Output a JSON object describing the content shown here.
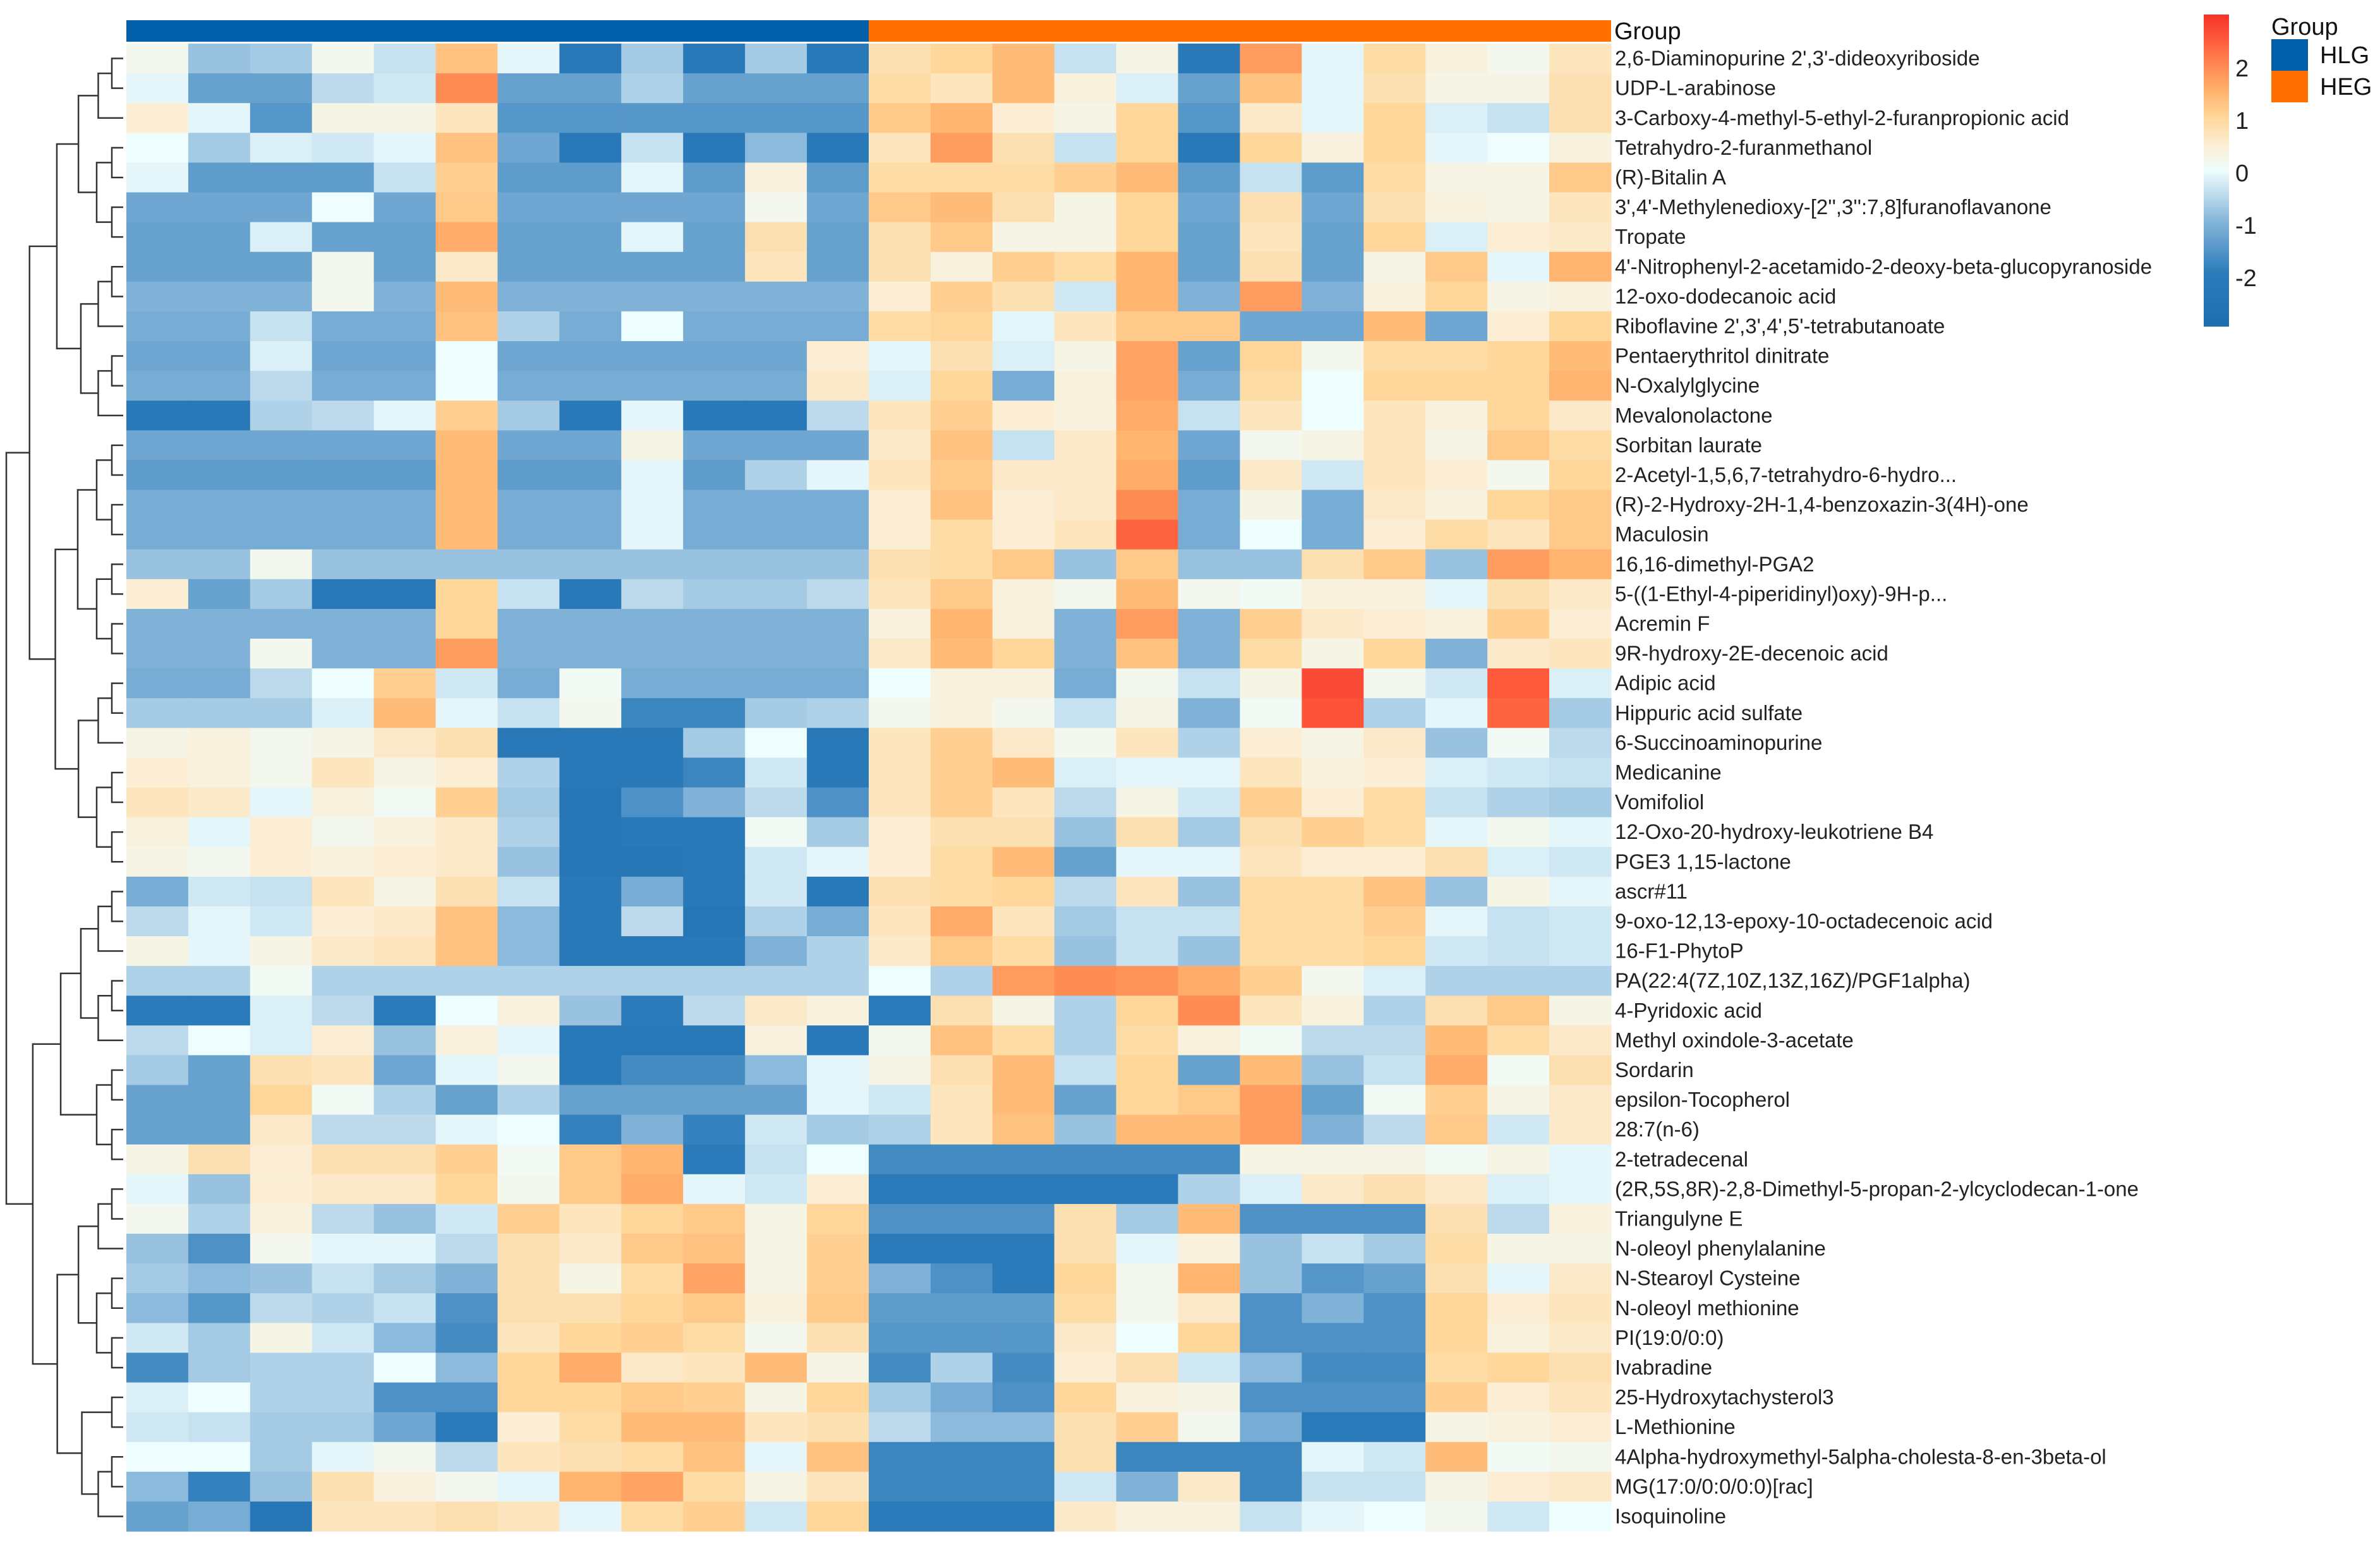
{
  "chart_data": {
    "type": "heatmap",
    "title": "",
    "group_annotation": {
      "title": "Group",
      "groups": [
        {
          "name": "HLG",
          "color": "#005fa8",
          "n_columns": 12
        },
        {
          "name": "HEG",
          "color": "#ff7000",
          "n_columns": 12
        }
      ]
    },
    "color_scale": {
      "range": [
        -3,
        3
      ],
      "ticks": [
        "2",
        "1",
        "0",
        "-1",
        "-2"
      ],
      "tick_values": [
        2,
        1,
        0,
        -1,
        -2
      ],
      "low_color": "#1f6fb0",
      "mid_color": "#eefdfd",
      "high_color": "#f4322a",
      "legend_position": "top-right"
    },
    "row_dendrogram": "left",
    "rows": [
      "2,6-Diaminopurine 2',3'-dideoxyriboside",
      "UDP-L-arabinose",
      "3-Carboxy-4-methyl-5-ethyl-2-furanpropionic acid",
      "Tetrahydro-2-furanmethanol",
      "(R)-Bitalin A",
      "3',4'-Methylenedioxy-[2'',3'':7,8]furanoflavanone",
      "Tropate",
      "4'-Nitrophenyl-2-acetamido-2-deoxy-beta-glucopyranoside",
      "12-oxo-dodecanoic acid",
      "Riboflavine 2',3',4',5'-tetrabutanoate",
      "Pentaerythritol dinitrate",
      "N-Oxalylglycine",
      "Mevalonolactone",
      "Sorbitan laurate",
      "2-Acetyl-1,5,6,7-tetrahydro-6-hydro...",
      "(R)-2-Hydroxy-2H-1,4-benzoxazin-3(4H)-one",
      "Maculosin",
      "16,16-dimethyl-PGA2",
      "5-((1-Ethyl-4-piperidinyl)oxy)-9H-p...",
      "Acremin F",
      "9R-hydroxy-2E-decenoic acid",
      "Adipic acid",
      "Hippuric acid sulfate",
      "6-Succinoaminopurine",
      "Medicanine",
      "Vomifoliol",
      "12-Oxo-20-hydroxy-leukotriene B4",
      "PGE3 1,15-lactone",
      "ascr#11",
      "9-oxo-12,13-epoxy-10-octadecenoic acid",
      "16-F1-PhytoP",
      "PA(22:4(7Z,10Z,13Z,16Z)/PGF1alpha)",
      "4-Pyridoxic acid",
      "Methyl oxindole-3-acetate",
      "Sordarin",
      "epsilon-Tocopherol",
      "28:7(n-6)",
      "2-tetradecenal",
      "(2R,5S,8R)-2,8-Dimethyl-5-propan-2-ylcyclodecan-1-one",
      "Triangulyne E",
      "N-oleoyl phenylalanine",
      "N-Stearoyl Cysteine",
      "N-oleoyl methionine",
      "PI(19:0/0:0)",
      "Ivabradine",
      "25-Hydroxytachysterol3",
      "L-Methionine",
      "4Alpha-hydroxymethyl-5alpha-cholesta-8-en-3beta-ol",
      "MG(17:0/0:0/0:0)[rac]",
      "Isoquinoline"
    ],
    "values": [
      [
        0.2,
        -0.8,
        -0.7,
        0.2,
        -0.4,
        1.3,
        -0.1,
        -2.2,
        -0.7,
        -2.2,
        -0.7,
        -2.2,
        0.8,
        1.0,
        1.4,
        -0.4,
        0.3,
        -2.2,
        1.8,
        -0.1,
        0.9,
        0.4,
        0.2,
        0.7
      ],
      [
        -0.1,
        -1.3,
        -1.3,
        -0.5,
        -0.3,
        2.0,
        -1.3,
        -1.3,
        -0.6,
        -1.3,
        -1.3,
        -1.3,
        0.9,
        0.7,
        1.4,
        0.4,
        -0.2,
        -1.3,
        1.3,
        -0.1,
        0.8,
        0.3,
        0.3,
        0.8
      ],
      [
        0.5,
        -0.1,
        -1.5,
        0.3,
        0.3,
        0.7,
        -1.5,
        -1.5,
        -1.5,
        -1.5,
        -1.5,
        -1.5,
        1.2,
        1.5,
        0.5,
        0.3,
        1.0,
        -1.5,
        0.6,
        -0.1,
        1.0,
        -0.2,
        -0.4,
        0.8
      ],
      [
        0.0,
        -0.7,
        -0.2,
        -0.3,
        -0.1,
        1.3,
        -1.2,
        -2.2,
        -0.4,
        -2.2,
        -0.9,
        -2.2,
        0.7,
        1.8,
        0.8,
        -0.4,
        1.0,
        -2.2,
        1.0,
        0.4,
        1.0,
        -0.1,
        0.0,
        0.4
      ],
      [
        -0.1,
        -1.4,
        -1.4,
        -1.4,
        -0.4,
        1.1,
        -1.4,
        -1.4,
        -0.1,
        -1.4,
        0.4,
        -1.4,
        0.9,
        0.9,
        0.9,
        1.1,
        1.4,
        -1.4,
        -0.4,
        -1.4,
        0.9,
        0.3,
        0.3,
        1.2
      ],
      [
        -1.2,
        -1.2,
        -1.2,
        0.0,
        -1.2,
        1.2,
        -1.2,
        -1.2,
        -1.2,
        -1.2,
        0.2,
        -1.2,
        1.2,
        1.4,
        0.8,
        0.3,
        1.0,
        -1.2,
        0.8,
        -1.2,
        0.8,
        0.4,
        0.3,
        0.7
      ],
      [
        -1.3,
        -1.3,
        -0.2,
        -1.3,
        -1.3,
        1.6,
        -1.3,
        -1.3,
        -0.1,
        -1.3,
        0.8,
        -1.3,
        0.8,
        1.2,
        0.3,
        0.3,
        1.0,
        -1.3,
        0.7,
        -1.3,
        1.0,
        -0.2,
        0.5,
        0.6
      ],
      [
        -1.3,
        -1.3,
        -1.3,
        0.2,
        -1.3,
        0.6,
        -1.3,
        -1.3,
        -1.3,
        -1.3,
        0.7,
        -1.3,
        0.8,
        0.4,
        1.1,
        0.9,
        1.5,
        -1.3,
        0.8,
        -1.3,
        0.3,
        1.2,
        -0.1,
        1.5
      ],
      [
        -1.0,
        -1.0,
        -1.0,
        0.2,
        -1.0,
        1.4,
        -1.0,
        -1.0,
        -1.0,
        -1.0,
        -1.0,
        -1.0,
        0.5,
        1.1,
        0.8,
        -0.3,
        1.5,
        -1.0,
        1.8,
        -1.0,
        0.4,
        1.0,
        0.3,
        0.4
      ],
      [
        -1.1,
        -1.1,
        -0.4,
        -1.1,
        -1.1,
        1.3,
        -0.6,
        -1.1,
        0.0,
        -1.1,
        -1.1,
        -1.1,
        0.9,
        1.0,
        -0.1,
        0.7,
        1.2,
        1.2,
        -1.2,
        -1.2,
        1.4,
        -1.2,
        0.5,
        1.0
      ],
      [
        -1.2,
        -1.2,
        -0.2,
        -1.2,
        -1.2,
        0.0,
        -1.2,
        -1.2,
        -1.2,
        -1.2,
        -1.2,
        0.5,
        -0.1,
        0.8,
        -0.2,
        0.3,
        1.7,
        -1.3,
        1.0,
        0.2,
        0.9,
        0.9,
        1.0,
        1.4
      ],
      [
        -1.1,
        -1.1,
        -0.5,
        -1.1,
        -1.1,
        0.0,
        -1.1,
        -1.1,
        -1.1,
        -1.1,
        -1.1,
        0.6,
        -0.2,
        1.0,
        -1.1,
        0.4,
        1.7,
        -1.1,
        0.9,
        0.0,
        1.0,
        1.0,
        1.0,
        1.5
      ],
      [
        -2.2,
        -2.2,
        -0.6,
        -0.5,
        -0.1,
        1.1,
        -0.7,
        -2.2,
        -0.1,
        -2.2,
        -2.2,
        -0.5,
        0.7,
        1.1,
        0.5,
        0.4,
        1.6,
        -0.4,
        0.7,
        0.0,
        0.7,
        0.4,
        1.0,
        0.6
      ],
      [
        -1.2,
        -1.2,
        -1.2,
        -1.2,
        -1.2,
        1.4,
        -1.2,
        -1.2,
        0.3,
        -1.2,
        -1.2,
        -1.2,
        0.6,
        1.3,
        -0.4,
        0.6,
        1.5,
        -1.2,
        0.2,
        0.3,
        0.7,
        0.3,
        1.2,
        0.9
      ],
      [
        -1.4,
        -1.4,
        -1.4,
        -1.4,
        -1.4,
        1.4,
        -1.4,
        -1.4,
        -0.1,
        -1.4,
        -0.6,
        -0.1,
        0.7,
        1.2,
        0.6,
        0.6,
        1.6,
        -1.4,
        0.6,
        -0.3,
        0.7,
        0.5,
        0.2,
        1.0
      ],
      [
        -1.1,
        -1.1,
        -1.1,
        -1.1,
        -1.1,
        1.4,
        -1.1,
        -1.1,
        -0.1,
        -1.1,
        -1.1,
        -1.1,
        0.5,
        1.3,
        0.5,
        0.6,
        2.0,
        -1.1,
        0.3,
        -1.1,
        0.6,
        0.4,
        1.0,
        1.2
      ],
      [
        -1.1,
        -1.1,
        -1.1,
        -1.1,
        -1.1,
        1.4,
        -1.1,
        -1.1,
        -0.1,
        -1.1,
        -1.1,
        -1.1,
        0.5,
        0.9,
        0.5,
        0.7,
        2.4,
        -1.1,
        0.0,
        -1.1,
        0.5,
        0.9,
        0.7,
        1.2
      ],
      [
        -0.8,
        -0.8,
        0.2,
        -0.8,
        -0.8,
        -0.8,
        -0.8,
        -0.8,
        -0.8,
        -0.8,
        -0.8,
        -0.8,
        0.8,
        0.9,
        1.2,
        -0.8,
        1.2,
        -0.8,
        -0.8,
        0.8,
        1.2,
        -0.8,
        1.8,
        1.5
      ],
      [
        0.5,
        -1.3,
        -0.7,
        -2.2,
        -2.2,
        1.0,
        -0.4,
        -2.2,
        -0.5,
        -0.7,
        -0.7,
        -0.5,
        0.7,
        1.2,
        0.4,
        0.2,
        1.4,
        0.2,
        0.1,
        0.4,
        0.4,
        -0.1,
        0.8,
        0.6
      ],
      [
        -1.0,
        -1.0,
        -1.0,
        -1.0,
        -1.0,
        1.0,
        -1.0,
        -1.0,
        -1.0,
        -1.0,
        -1.0,
        -1.0,
        0.4,
        1.5,
        0.4,
        -1.0,
        1.8,
        -1.0,
        1.1,
        0.6,
        0.5,
        0.4,
        1.1,
        0.5
      ],
      [
        -1.0,
        -1.0,
        0.2,
        -1.0,
        -1.0,
        1.8,
        -1.0,
        -1.0,
        -1.0,
        -1.0,
        -1.0,
        -1.0,
        0.6,
        1.4,
        1.0,
        -1.0,
        1.3,
        -1.0,
        0.9,
        0.3,
        1.0,
        -1.0,
        0.6,
        0.7
      ],
      [
        -1.1,
        -1.1,
        -0.5,
        0.0,
        1.1,
        -0.3,
        -1.1,
        0.1,
        -1.1,
        -1.1,
        -1.1,
        -1.1,
        0.0,
        0.4,
        0.4,
        -1.1,
        0.2,
        -0.4,
        0.3,
        2.7,
        0.2,
        -0.3,
        2.5,
        -0.2
      ],
      [
        -0.7,
        -0.7,
        -0.7,
        -0.2,
        1.4,
        -0.1,
        -0.4,
        0.2,
        -1.8,
        -1.8,
        -0.7,
        -0.6,
        0.2,
        0.4,
        0.2,
        -0.4,
        0.3,
        -1.0,
        0.1,
        2.6,
        -0.6,
        -0.1,
        2.4,
        -0.7
      ],
      [
        0.3,
        0.4,
        0.2,
        0.3,
        0.6,
        0.8,
        -2.2,
        -2.2,
        -2.2,
        -0.7,
        0.0,
        -2.2,
        0.7,
        1.1,
        0.6,
        0.2,
        0.7,
        -0.6,
        0.5,
        0.3,
        0.6,
        -0.8,
        0.1,
        -0.5
      ],
      [
        0.5,
        0.4,
        0.2,
        0.7,
        0.3,
        0.5,
        -0.6,
        -2.2,
        -2.2,
        -1.8,
        -0.3,
        -2.2,
        0.7,
        1.1,
        1.4,
        -0.2,
        -0.1,
        -0.1,
        0.7,
        0.4,
        0.5,
        -0.2,
        -0.3,
        -0.4
      ],
      [
        0.7,
        0.6,
        -0.1,
        0.4,
        0.1,
        1.1,
        -0.7,
        -2.4,
        -1.6,
        -1.0,
        -0.5,
        -1.6,
        0.7,
        1.1,
        0.7,
        -0.5,
        0.3,
        -0.3,
        1.1,
        0.5,
        0.9,
        -0.4,
        -0.6,
        -0.7
      ],
      [
        0.4,
        -0.1,
        0.5,
        0.2,
        0.4,
        0.6,
        -0.6,
        -2.3,
        -2.2,
        -2.2,
        0.1,
        -0.7,
        0.5,
        0.8,
        0.8,
        -0.8,
        0.8,
        -0.7,
        0.8,
        1.1,
        0.9,
        -0.1,
        0.2,
        -0.1
      ],
      [
        0.3,
        0.2,
        0.5,
        0.4,
        0.5,
        0.6,
        -0.8,
        -2.3,
        -2.3,
        -2.2,
        -0.3,
        -0.1,
        0.5,
        0.9,
        1.4,
        -1.3,
        -0.1,
        -0.1,
        0.7,
        0.5,
        0.5,
        0.8,
        -0.2,
        -0.3
      ],
      [
        -1.1,
        -0.3,
        -0.4,
        0.7,
        0.3,
        0.8,
        -0.4,
        -2.2,
        -1.1,
        -2.2,
        -0.3,
        -2.2,
        0.8,
        0.9,
        1.0,
        -0.5,
        0.7,
        -0.8,
        0.9,
        0.9,
        1.3,
        -0.8,
        0.3,
        -0.1
      ],
      [
        -0.5,
        -0.1,
        -0.3,
        0.5,
        0.6,
        1.3,
        -0.9,
        -2.2,
        -0.5,
        -2.4,
        -0.6,
        -1.1,
        0.7,
        1.6,
        0.7,
        -0.7,
        -0.4,
        -0.4,
        0.9,
        0.9,
        1.1,
        -0.1,
        -0.4,
        -0.3
      ],
      [
        0.3,
        -0.1,
        0.3,
        0.6,
        0.7,
        1.3,
        -0.9,
        -2.2,
        -2.2,
        -2.2,
        -1.0,
        -0.6,
        0.6,
        1.2,
        0.9,
        -0.8,
        -0.4,
        -0.8,
        0.9,
        0.9,
        1.0,
        -0.3,
        -0.4,
        -0.3
      ],
      [
        -0.6,
        -0.6,
        0.1,
        -0.6,
        -0.6,
        -0.6,
        -0.6,
        -0.6,
        -0.6,
        -0.6,
        -0.6,
        -0.6,
        0.0,
        -0.6,
        1.8,
        2.0,
        1.9,
        1.6,
        1.1,
        0.2,
        -0.2,
        -0.6,
        -0.6,
        -0.6
      ],
      [
        -2.0,
        -2.0,
        -0.2,
        -0.5,
        -2.0,
        0.0,
        0.4,
        -0.8,
        -2.0,
        -0.5,
        0.6,
        0.4,
        -2.0,
        0.8,
        0.3,
        -0.6,
        1.0,
        2.0,
        0.7,
        0.4,
        -0.6,
        0.8,
        1.2,
        0.3
      ],
      [
        -0.5,
        0.0,
        -0.2,
        0.5,
        -0.8,
        0.4,
        -0.1,
        -2.2,
        -2.2,
        -2.2,
        0.4,
        -2.2,
        0.2,
        1.3,
        0.9,
        -0.6,
        0.9,
        0.4,
        0.1,
        -0.5,
        -0.5,
        1.4,
        0.9,
        0.6
      ],
      [
        -0.7,
        -1.3,
        0.8,
        0.7,
        -1.2,
        -0.1,
        0.2,
        -2.2,
        -1.7,
        -1.7,
        -0.9,
        -0.1,
        0.3,
        0.8,
        1.4,
        -0.4,
        1.0,
        -1.3,
        1.4,
        -0.8,
        -0.4,
        1.6,
        0.1,
        0.8
      ],
      [
        -1.3,
        -1.3,
        1.0,
        0.1,
        -0.6,
        -1.3,
        -0.6,
        -1.3,
        -1.3,
        -1.3,
        -1.3,
        -0.1,
        -0.3,
        0.7,
        1.4,
        -1.3,
        1.0,
        1.2,
        1.8,
        -1.3,
        0.1,
        1.1,
        0.3,
        0.6
      ],
      [
        -1.3,
        -1.3,
        0.6,
        -0.5,
        -0.5,
        -0.1,
        0.0,
        -1.9,
        -1.0,
        -1.9,
        -0.3,
        -0.7,
        -0.6,
        0.7,
        1.3,
        -0.8,
        1.4,
        1.4,
        1.8,
        -1.0,
        -0.5,
        1.2,
        -0.3,
        0.6
      ],
      [
        0.3,
        0.8,
        0.5,
        0.8,
        0.8,
        1.1,
        0.1,
        1.2,
        1.5,
        -2.0,
        -0.4,
        0.0,
        -1.7,
        -1.7,
        -1.7,
        -1.7,
        -1.7,
        -1.7,
        0.3,
        0.3,
        0.3,
        0.1,
        0.3,
        -0.1
      ],
      [
        -0.1,
        -0.8,
        0.5,
        0.6,
        0.6,
        1.0,
        0.2,
        1.2,
        1.6,
        -0.1,
        -0.3,
        0.5,
        -2.1,
        -2.1,
        -2.1,
        -2.1,
        -2.1,
        -0.6,
        -0.2,
        0.6,
        0.8,
        0.6,
        -0.2,
        -0.1
      ],
      [
        0.2,
        -0.6,
        0.4,
        -0.5,
        -0.8,
        -0.3,
        1.1,
        0.7,
        1.0,
        1.2,
        0.3,
        1.0,
        -1.6,
        -1.6,
        -1.6,
        0.8,
        -0.7,
        1.4,
        -1.6,
        -1.6,
        -1.6,
        0.8,
        -0.5,
        0.4
      ],
      [
        -0.8,
        -1.6,
        0.2,
        -0.1,
        -0.1,
        -0.5,
        0.8,
        0.6,
        1.2,
        1.3,
        0.3,
        1.1,
        -2.0,
        -2.0,
        -2.0,
        0.8,
        -0.1,
        0.4,
        -0.8,
        -0.4,
        -0.7,
        0.9,
        0.3,
        0.3
      ],
      [
        -0.7,
        -0.9,
        -0.8,
        -0.4,
        -0.7,
        -1.0,
        0.8,
        0.3,
        0.9,
        1.7,
        0.3,
        1.1,
        -1.0,
        -1.6,
        -2.1,
        1.0,
        0.2,
        1.5,
        -0.8,
        -1.5,
        -1.3,
        0.8,
        -0.1,
        0.6
      ],
      [
        -0.9,
        -1.5,
        -0.5,
        -0.6,
        -0.4,
        -1.6,
        0.8,
        0.8,
        1.0,
        1.2,
        0.4,
        1.2,
        -1.4,
        -1.4,
        -1.4,
        0.9,
        0.2,
        0.6,
        -1.6,
        -1.0,
        -1.6,
        1.0,
        0.5,
        0.7
      ],
      [
        -0.3,
        -0.7,
        0.3,
        -0.3,
        -0.9,
        -1.7,
        0.7,
        1.0,
        1.1,
        0.9,
        0.2,
        0.8,
        -1.5,
        -1.5,
        -1.5,
        0.6,
        0.0,
        1.0,
        -1.6,
        -1.6,
        -1.6,
        1.0,
        0.4,
        0.6
      ],
      [
        -1.7,
        -0.7,
        -0.6,
        -0.6,
        0.0,
        -0.9,
        1.0,
        1.6,
        0.6,
        0.7,
        1.4,
        0.3,
        -1.7,
        -0.6,
        -1.7,
        0.5,
        0.8,
        -0.3,
        -0.9,
        -1.7,
        -1.7,
        0.9,
        1.0,
        0.8
      ],
      [
        -0.2,
        0.0,
        -0.6,
        -0.6,
        -1.6,
        -1.6,
        1.0,
        1.0,
        1.2,
        1.1,
        0.3,
        1.0,
        -0.7,
        -1.1,
        -1.6,
        1.0,
        0.4,
        0.3,
        -1.6,
        -1.6,
        -1.6,
        1.1,
        0.5,
        0.7
      ],
      [
        -0.3,
        -0.4,
        -0.7,
        -0.7,
        -1.2,
        -2.0,
        0.5,
        0.9,
        1.4,
        1.4,
        0.7,
        0.8,
        -0.5,
        -0.9,
        -0.9,
        0.8,
        1.1,
        0.2,
        -1.1,
        -2.1,
        -2.1,
        0.3,
        0.4,
        0.5
      ],
      [
        0.0,
        0.0,
        -0.7,
        -0.1,
        0.2,
        -0.5,
        0.7,
        0.8,
        0.9,
        1.3,
        -0.1,
        1.3,
        -1.8,
        -1.8,
        -1.8,
        0.8,
        -1.8,
        -1.8,
        -1.8,
        -0.1,
        -0.3,
        1.4,
        0.1,
        0.2
      ],
      [
        -0.9,
        -1.9,
        -0.8,
        0.8,
        0.4,
        0.2,
        -0.1,
        1.5,
        1.7,
        0.9,
        0.3,
        0.7,
        -1.8,
        -1.8,
        -1.8,
        -0.3,
        -1.0,
        0.6,
        -1.8,
        -0.4,
        -0.4,
        0.3,
        0.5,
        0.6
      ],
      [
        -1.3,
        -1.1,
        -2.3,
        0.7,
        0.7,
        0.8,
        0.7,
        -0.1,
        0.9,
        1.1,
        -0.3,
        1.0,
        -2.1,
        -2.1,
        -2.1,
        0.6,
        0.4,
        0.4,
        -0.4,
        -0.1,
        0.0,
        0.2,
        -0.3,
        0.0
      ]
    ]
  }
}
